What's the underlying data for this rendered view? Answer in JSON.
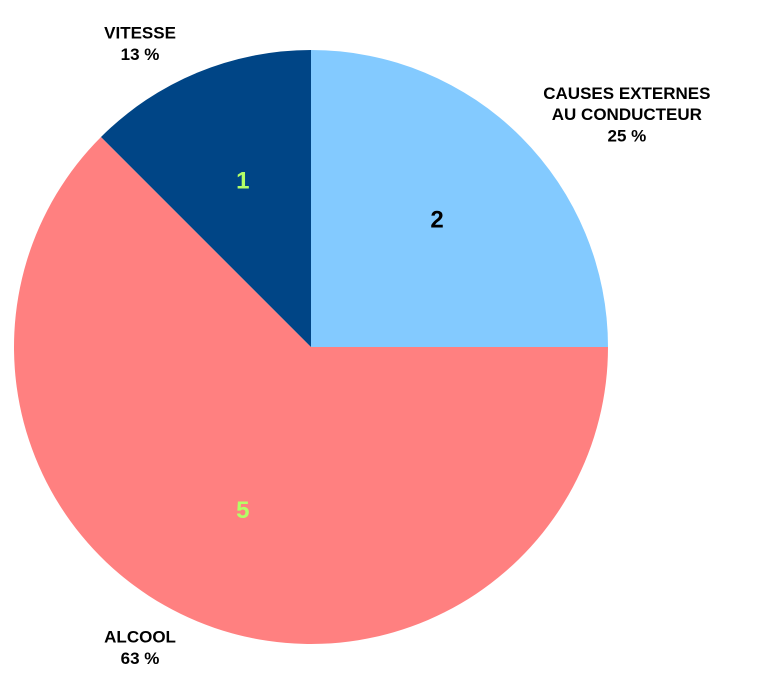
{
  "chart_data": {
    "type": "pie",
    "categories": [
      "CAUSES EXTERNES\nAU CONDUCTEUR",
      "ALCOOL",
      "VITESSE"
    ],
    "values": [
      2,
      5,
      1
    ],
    "percentages": [
      25,
      63,
      13
    ],
    "percentage_labels": [
      "25 %",
      "63 %",
      "13 %"
    ],
    "colors": [
      "#83caff",
      "#ff8080",
      "#004586"
    ],
    "value_label_colors": [
      "#000000",
      "#b3ff66",
      "#b3ff66"
    ]
  }
}
